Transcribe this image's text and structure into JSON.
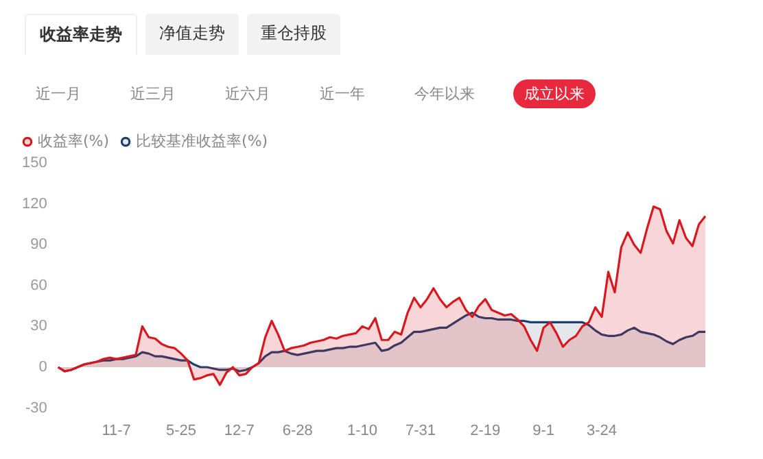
{
  "chart_data": {
    "type": "area",
    "legend": "top left",
    "grid": false,
    "annotations": [
      "收益率走势",
      "净值走势",
      "重仓持股",
      "近一月",
      "近三月",
      "近六月",
      "近一年",
      "今年以来",
      "成立以来"
    ],
    "categories": [
      null,
      null,
      null,
      null,
      null,
      null,
      null,
      null,
      null,
      "11-7",
      null,
      null,
      null,
      null,
      null,
      null,
      null,
      null,
      null,
      "5-25",
      null,
      null,
      null,
      null,
      null,
      null,
      null,
      null,
      "12-7",
      null,
      null,
      null,
      null,
      null,
      null,
      null,
      null,
      "6-28",
      null,
      null,
      null,
      null,
      null,
      null,
      null,
      null,
      null,
      "1-10",
      null,
      null,
      null,
      null,
      null,
      null,
      null,
      null,
      "7-31",
      null,
      null,
      null,
      null,
      null,
      null,
      null,
      null,
      null,
      "2-19",
      null,
      null,
      null,
      null,
      null,
      null,
      null,
      null,
      "9-1",
      null,
      null,
      null,
      null,
      null,
      null,
      null,
      null,
      "3-24",
      null,
      null,
      null,
      null,
      null,
      null,
      null,
      null,
      null,
      null,
      null,
      null,
      null,
      null,
      null,
      null
    ],
    "ylim": [
      -30,
      150
    ],
    "yticks": [
      -30,
      0,
      30,
      60,
      90,
      120,
      150
    ],
    "series": [
      {
        "name": "收益率(%)",
        "color": "#d7191f",
        "values": [
          0,
          -3,
          -2,
          0,
          2,
          3,
          4,
          6,
          7,
          6,
          7,
          8,
          9,
          30,
          22,
          21,
          17,
          15,
          14,
          10,
          5,
          -9,
          -8,
          -6,
          -5,
          -13,
          -4,
          0,
          -6,
          -5,
          0,
          3,
          22,
          34,
          24,
          12,
          14,
          15,
          16,
          18,
          19,
          20,
          22,
          21,
          23,
          24,
          25,
          30,
          28,
          36,
          20,
          20,
          26,
          24,
          40,
          51,
          44,
          50,
          58,
          50,
          44,
          48,
          51,
          42,
          37,
          45,
          50,
          42,
          40,
          38,
          39,
          35,
          30,
          20,
          12,
          29,
          33,
          25,
          15,
          20,
          23,
          30,
          33,
          44,
          37,
          70,
          55,
          88,
          99,
          90,
          84,
          102,
          118,
          116,
          100,
          91,
          108,
          95,
          89,
          105,
          111
        ]
      },
      {
        "name": "比较基准收益率(%)",
        "color": "#1d3f6e",
        "values": [
          0,
          -3,
          -2,
          0,
          2,
          3,
          4,
          5,
          5,
          6,
          6,
          7,
          8,
          11,
          10,
          8,
          8,
          7,
          6,
          5,
          5,
          2,
          0,
          0,
          -1,
          -2,
          -2,
          -1,
          -3,
          -2,
          0,
          3,
          8,
          11,
          11,
          12,
          10,
          9,
          10,
          11,
          12,
          12,
          13,
          14,
          14,
          15,
          15,
          16,
          17,
          18,
          12,
          13,
          16,
          18,
          22,
          26,
          26,
          27,
          28,
          29,
          29,
          32,
          35,
          38,
          40,
          37,
          36,
          36,
          35,
          35,
          35,
          34,
          34,
          33,
          33,
          33,
          33,
          33,
          33,
          33,
          33,
          33,
          31,
          27,
          24,
          23,
          23,
          24,
          27,
          29,
          26,
          25,
          24,
          22,
          19,
          17,
          20,
          22,
          23,
          26,
          26
        ]
      }
    ]
  }
}
